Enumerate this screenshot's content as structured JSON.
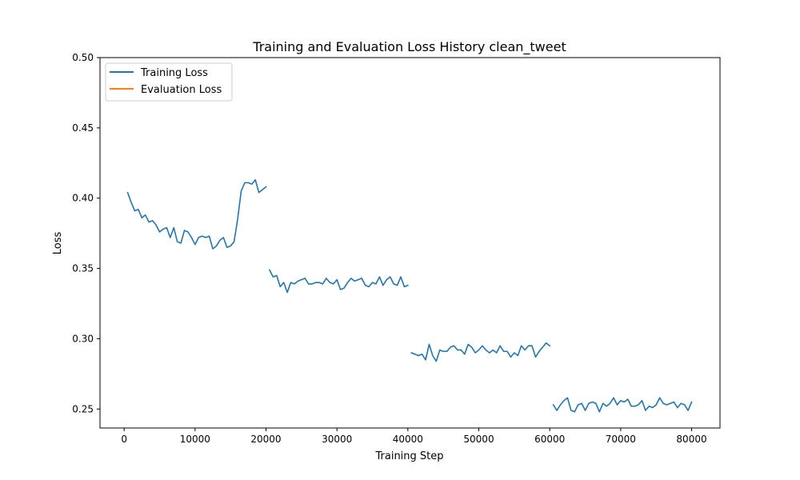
{
  "chart_data": {
    "type": "line",
    "title": "Training and Evaluation Loss History clean_tweet",
    "xlabel": "Training Step",
    "ylabel": "Loss",
    "xlim": [
      -3400,
      84000
    ],
    "ylim": [
      0.2365,
      0.5
    ],
    "xticks": [
      0,
      10000,
      20000,
      30000,
      40000,
      50000,
      60000,
      70000,
      80000
    ],
    "xtick_labels": [
      "0",
      "10000",
      "20000",
      "30000",
      "40000",
      "50000",
      "60000",
      "70000",
      "80000"
    ],
    "yticks": [
      0.25,
      0.3,
      0.35,
      0.4,
      0.45,
      0.5
    ],
    "ytick_labels": [
      "0.25",
      "0.30",
      "0.35",
      "0.40",
      "0.45",
      "0.50"
    ],
    "grid": false,
    "legend_position": "top-left",
    "series": [
      {
        "name": "Training Loss",
        "color": "#1f77b4",
        "segments": [
          {
            "x": [
              500,
              1000,
              1500,
              2000,
              2500,
              3000,
              3500,
              4000,
              4500,
              5000,
              5500,
              6000,
              6500,
              7000,
              7500,
              8000,
              8500,
              9000,
              9500,
              10000,
              10500,
              11000,
              11500,
              12000,
              12500,
              13000,
              13500,
              14000,
              14500,
              15000,
              15500,
              16000,
              16500,
              17000,
              17500,
              18000,
              18500,
              19000,
              19500,
              20000
            ],
            "y": [
              0.404,
              0.397,
              0.391,
              0.392,
              0.386,
              0.388,
              0.383,
              0.384,
              0.381,
              0.376,
              0.378,
              0.379,
              0.372,
              0.379,
              0.369,
              0.368,
              0.377,
              0.376,
              0.372,
              0.367,
              0.372,
              0.373,
              0.372,
              0.373,
              0.364,
              0.366,
              0.37,
              0.372,
              0.365,
              0.366,
              0.369,
              0.385,
              0.405,
              0.411,
              0.411,
              0.41,
              0.413,
              0.404,
              0.406,
              0.408
            ]
          },
          {
            "x": [
              20500,
              21000,
              21500,
              22000,
              22500,
              23000,
              23500,
              24000,
              24500,
              25000,
              25500,
              26000,
              26500,
              27000,
              27500,
              28000,
              28500,
              29000,
              29500,
              30000,
              30500,
              31000,
              31500,
              32000,
              32500,
              33000,
              33500,
              34000,
              34500,
              35000,
              35500,
              36000,
              36500,
              37000,
              37500,
              38000,
              38500,
              39000,
              39500,
              40000
            ],
            "y": [
              0.349,
              0.344,
              0.345,
              0.337,
              0.34,
              0.333,
              0.34,
              0.339,
              0.341,
              0.342,
              0.343,
              0.339,
              0.339,
              0.34,
              0.34,
              0.339,
              0.343,
              0.34,
              0.339,
              0.342,
              0.335,
              0.336,
              0.34,
              0.343,
              0.341,
              0.342,
              0.343,
              0.338,
              0.337,
              0.34,
              0.339,
              0.344,
              0.338,
              0.342,
              0.344,
              0.339,
              0.338,
              0.344,
              0.337,
              0.338
            ]
          },
          {
            "x": [
              40500,
              41000,
              41500,
              42000,
              42500,
              43000,
              43500,
              44000,
              44500,
              45000,
              45500,
              46000,
              46500,
              47000,
              47500,
              48000,
              48500,
              49000,
              49500,
              50000,
              50500,
              51000,
              51500,
              52000,
              52500,
              53000,
              53500,
              54000,
              54500,
              55000,
              55500,
              56000,
              56500,
              57000,
              57500,
              58000,
              58500,
              59000,
              59500,
              60000
            ],
            "y": [
              0.29,
              0.289,
              0.288,
              0.289,
              0.285,
              0.296,
              0.288,
              0.284,
              0.292,
              0.291,
              0.291,
              0.294,
              0.295,
              0.292,
              0.292,
              0.289,
              0.296,
              0.294,
              0.29,
              0.292,
              0.295,
              0.292,
              0.29,
              0.292,
              0.29,
              0.295,
              0.291,
              0.291,
              0.287,
              0.29,
              0.288,
              0.295,
              0.292,
              0.295,
              0.295,
              0.287,
              0.291,
              0.294,
              0.297,
              0.295
            ]
          },
          {
            "x": [
              60500,
              61000,
              61500,
              62000,
              62500,
              63000,
              63500,
              64000,
              64500,
              65000,
              65500,
              66000,
              66500,
              67000,
              67500,
              68000,
              68500,
              69000,
              69500,
              70000,
              70500,
              71000,
              71500,
              72000,
              72500,
              73000,
              73500,
              74000,
              74500,
              75000,
              75500,
              76000,
              76500,
              77000,
              77500,
              78000,
              78500,
              79000,
              79500,
              80000
            ],
            "y": [
              0.253,
              0.249,
              0.253,
              0.256,
              0.258,
              0.249,
              0.248,
              0.253,
              0.254,
              0.249,
              0.254,
              0.255,
              0.254,
              0.248,
              0.254,
              0.252,
              0.254,
              0.258,
              0.253,
              0.256,
              0.255,
              0.257,
              0.252,
              0.252,
              0.253,
              0.256,
              0.249,
              0.252,
              0.251,
              0.253,
              0.258,
              0.254,
              0.253,
              0.254,
              0.255,
              0.251,
              0.254,
              0.253,
              0.249,
              0.255
            ]
          }
        ]
      },
      {
        "name": "Evaluation Loss",
        "color": "#ff7f0e",
        "segments": []
      }
    ]
  }
}
